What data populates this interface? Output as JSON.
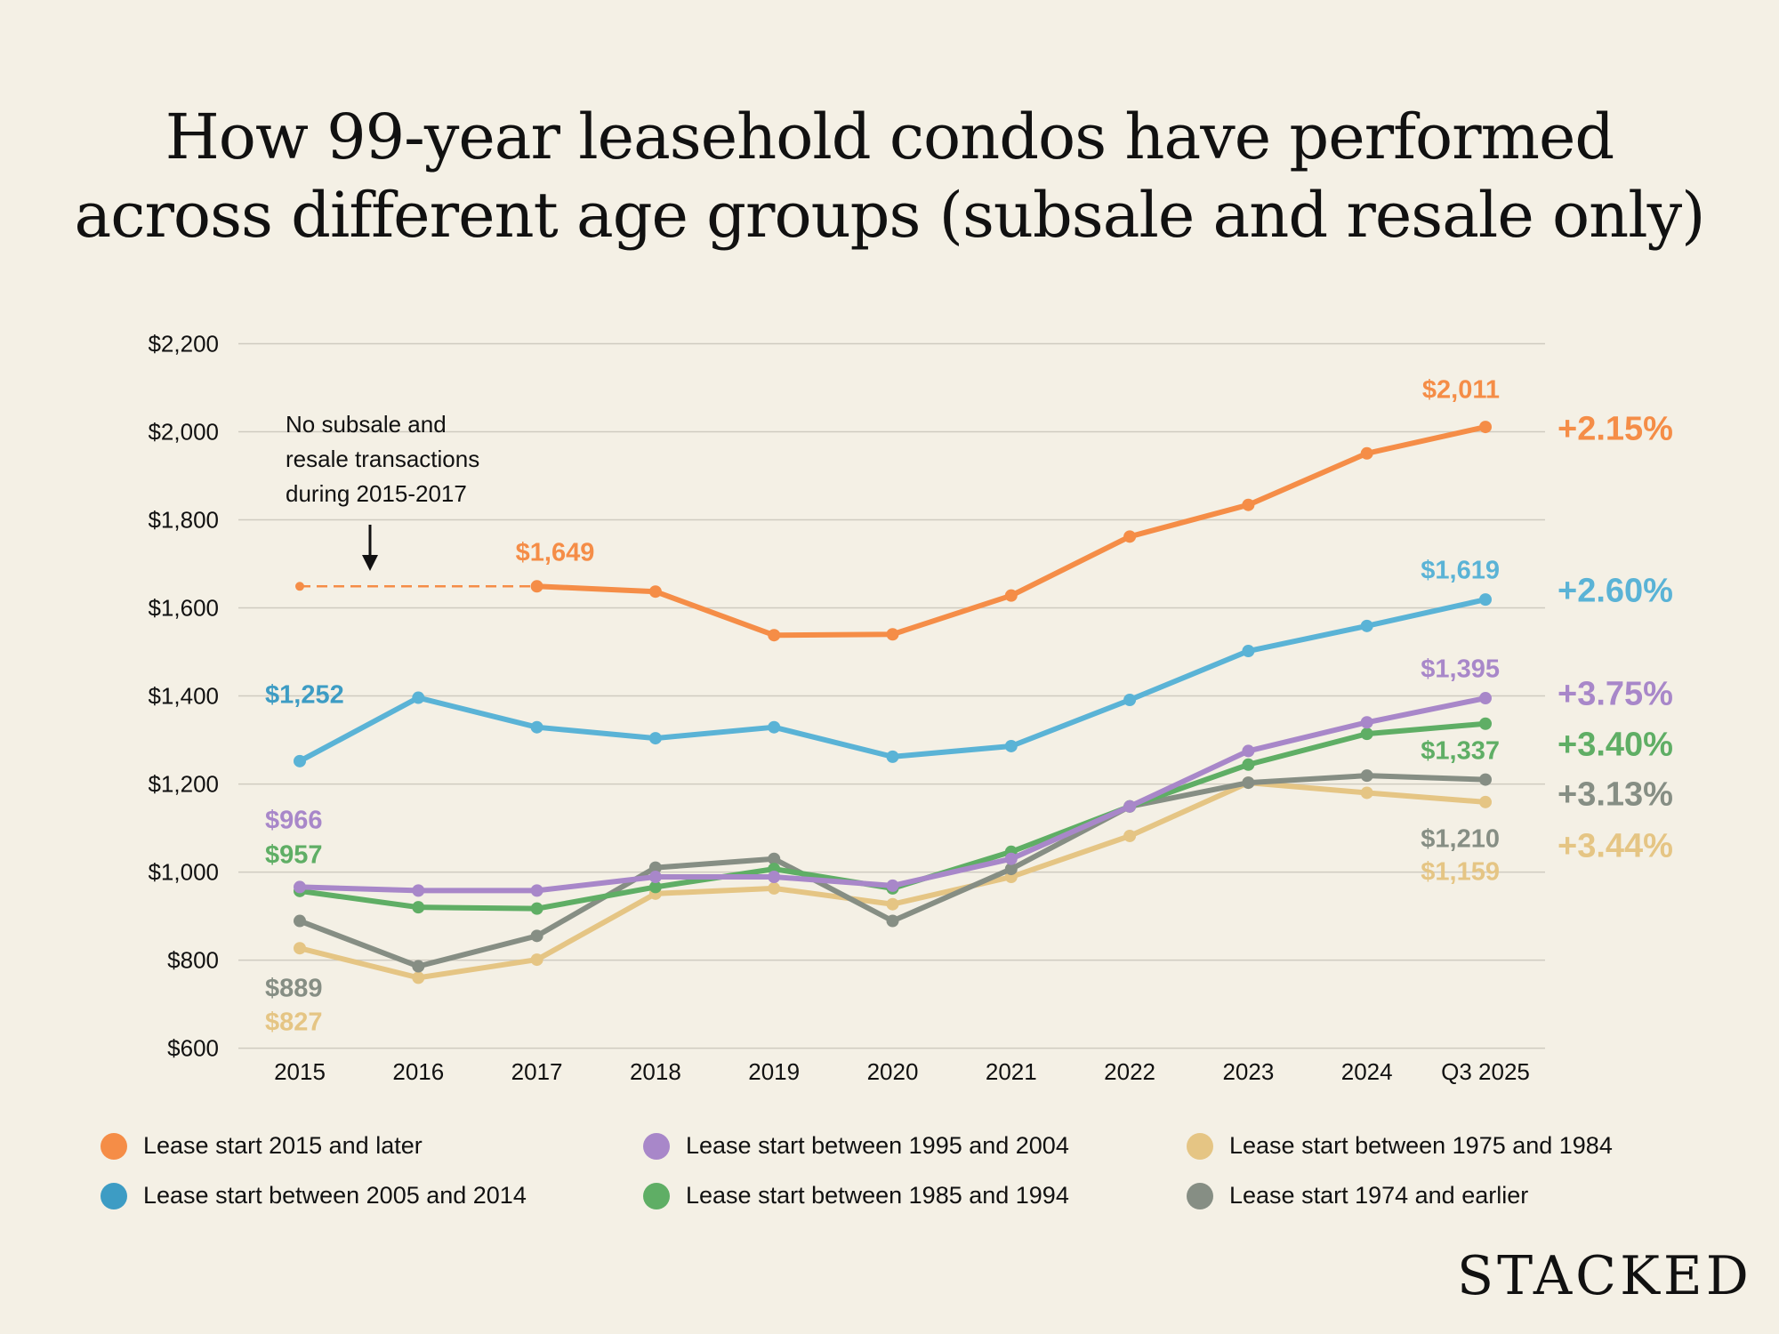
{
  "chart_data": {
    "type": "line",
    "title": "How 99-year leasehold condos have performed across different age groups (subsale and resale only)",
    "title_lines": [
      "How 99-year leasehold condos have performed",
      "across different age groups (subsale and resale only)"
    ],
    "categories": [
      "2015",
      "2016",
      "2017",
      "2018",
      "2019",
      "2020",
      "2021",
      "2022",
      "2023",
      "2024",
      "Q3 2025"
    ],
    "y_ticks": [
      "$600",
      "$800",
      "$1,000",
      "$1,200",
      "$1,400",
      "$1,600",
      "$1,800",
      "$2,000",
      "$2,200"
    ],
    "ylim": [
      600,
      2200
    ],
    "grid": true,
    "legend_placement": "bottom",
    "annotation": {
      "lines": [
        "No subsale and",
        "resale transactions",
        "during 2015-2017"
      ]
    },
    "series": [
      {
        "name": "Lease start 2015 and later",
        "color": "#f58d47",
        "values": [
          1649,
          null,
          1649,
          1637,
          1538,
          1540,
          1628,
          1762,
          1834,
          1951,
          2011
        ],
        "dashed_segment": [
          "2015",
          "2017"
        ],
        "start_label": "$1,649",
        "end_label": "$2,011",
        "change": "+2.15%"
      },
      {
        "name": "Lease start between 2005 and 2014",
        "color": "#5ab3d6",
        "values": [
          1252,
          1396,
          1329,
          1304,
          1329,
          1262,
          1286,
          1391,
          1502,
          1559,
          1619
        ],
        "start_label": "$1,252",
        "end_label": "$1,619",
        "change": "+2.60%"
      },
      {
        "name": "Lease start between 1995 and 2004",
        "color": "#a887c9",
        "values": [
          966,
          958,
          958,
          989,
          989,
          969,
          1030,
          1149,
          1275,
          1340,
          1395
        ],
        "start_label": "$966",
        "end_label": "$1,395",
        "change": "+3.75%"
      },
      {
        "name": "Lease start between 1985 and 1994",
        "color": "#5fae65",
        "values": [
          957,
          920,
          917,
          966,
          1007,
          963,
          1046,
          1149,
          1244,
          1314,
          1337
        ],
        "start_label": "$957",
        "end_label": "$1,337",
        "change": "+3.40%"
      },
      {
        "name": "Lease start 1974 and earlier",
        "color": "#868e84",
        "values": [
          889,
          786,
          855,
          1010,
          1030,
          889,
          1007,
          1149,
          1203,
          1219,
          1210
        ],
        "start_label": "$889",
        "end_label": "$1,210",
        "change": "+3.13%"
      },
      {
        "name": "Lease start between 1975 and 1984",
        "color": "#e5c584",
        "values": [
          827,
          760,
          801,
          951,
          963,
          927,
          989,
          1082,
          1203,
          1180,
          1159
        ],
        "start_label": "$827",
        "end_label": "$1,159",
        "change": "+3.44%"
      }
    ]
  },
  "legend_colors": {
    "between_2005_2014_dot": "#3d9cc4"
  },
  "brand": {
    "logo": "STACKED"
  }
}
